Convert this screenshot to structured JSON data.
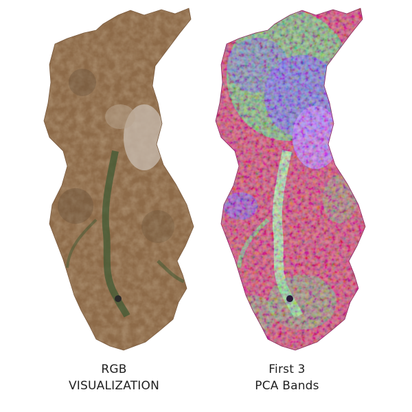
{
  "figure": {
    "panels": [
      {
        "id": "rgb",
        "caption_lines": [
          "RGB",
          "VISUALIZATION"
        ],
        "palette": {
          "base": "#8d6a48",
          "light": "#b8a48e",
          "dark": "#5e4a34",
          "vegetation": "#3f5a33",
          "urban": "#c9beb2"
        }
      },
      {
        "id": "pca",
        "caption_lines": [
          "First 3",
          "PCA Bands"
        ],
        "palette": {
          "base": "#c9365a",
          "green": "#56d36a",
          "blue": "#6a4ef0",
          "violet": "#b56bf2",
          "light_green": "#9ef29a",
          "dark": "#2a1a3a"
        }
      }
    ]
  }
}
